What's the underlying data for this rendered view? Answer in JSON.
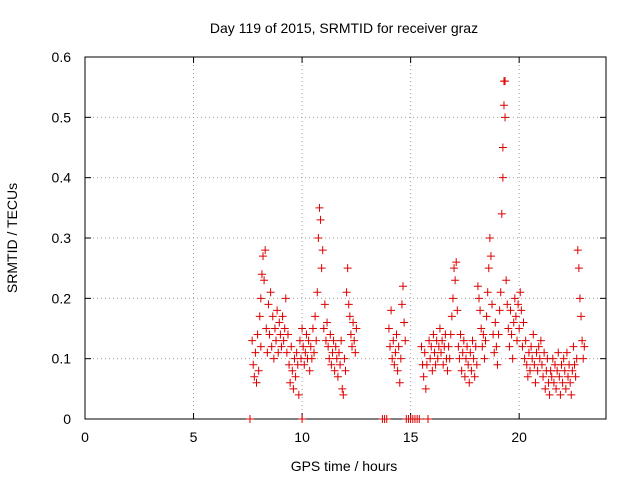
{
  "chart_data": {
    "type": "scatter",
    "title": "Day 119 of 2015, SRMTID for receiver graz",
    "xlabel": "GPS time / hours",
    "ylabel": "SRMTID / TECUs",
    "xlim": [
      0,
      24
    ],
    "ylim": [
      0,
      0.6
    ],
    "xticks": [
      0,
      5,
      10,
      15,
      20
    ],
    "yticks": [
      0,
      0.1,
      0.2,
      0.3,
      0.4,
      0.5,
      0.6
    ],
    "xtick_labels": [
      "0",
      "5",
      "10",
      "15",
      "20"
    ],
    "ytick_labels": [
      "0",
      "0.1",
      "0.2",
      "0.3",
      "0.4",
      "0.5",
      "0.6"
    ],
    "grid": true,
    "marker": "plus",
    "marker_color": "#dd0000",
    "series": [
      {
        "name": "graz",
        "points": [
          [
            7.6,
            0.0
          ],
          [
            7.7,
            0.13
          ],
          [
            7.75,
            0.09
          ],
          [
            7.8,
            0.07
          ],
          [
            7.85,
            0.11
          ],
          [
            7.9,
            0.06
          ],
          [
            7.95,
            0.14
          ],
          [
            8.0,
            0.08
          ],
          [
            8.05,
            0.17
          ],
          [
            8.1,
            0.12
          ],
          [
            8.1,
            0.2
          ],
          [
            8.15,
            0.24
          ],
          [
            8.2,
            0.27
          ],
          [
            8.25,
            0.23
          ],
          [
            8.3,
            0.28
          ],
          [
            8.35,
            0.15
          ],
          [
            8.4,
            0.11
          ],
          [
            8.45,
            0.19
          ],
          [
            8.5,
            0.14
          ],
          [
            8.55,
            0.21
          ],
          [
            8.6,
            0.12
          ],
          [
            8.65,
            0.17
          ],
          [
            8.7,
            0.1
          ],
          [
            8.75,
            0.15
          ],
          [
            8.8,
            0.13
          ],
          [
            8.85,
            0.18
          ],
          [
            8.9,
            0.11
          ],
          [
            8.95,
            0.16
          ],
          [
            9.0,
            0.14
          ],
          [
            9.05,
            0.12
          ],
          [
            9.1,
            0.17
          ],
          [
            9.15,
            0.13
          ],
          [
            9.2,
            0.15
          ],
          [
            9.25,
            0.2
          ],
          [
            9.3,
            0.11
          ],
          [
            9.35,
            0.14
          ],
          [
            9.4,
            0.09
          ],
          [
            9.45,
            0.06
          ],
          [
            9.5,
            0.12
          ],
          [
            9.55,
            0.08
          ],
          [
            9.6,
            0.05
          ],
          [
            9.65,
            0.1
          ],
          [
            9.7,
            0.07
          ],
          [
            9.75,
            0.11
          ],
          [
            9.8,
            0.09
          ],
          [
            9.85,
            0.04
          ],
          [
            9.9,
            0.13
          ],
          [
            9.95,
            0.1
          ],
          [
            10.0,
            0.0
          ],
          [
            10.0,
            0.15
          ],
          [
            10.05,
            0.12
          ],
          [
            10.1,
            0.09
          ],
          [
            10.15,
            0.11
          ],
          [
            10.2,
            0.14
          ],
          [
            10.25,
            0.1
          ],
          [
            10.3,
            0.13
          ],
          [
            10.35,
            0.08
          ],
          [
            10.4,
            0.12
          ],
          [
            10.45,
            0.1
          ],
          [
            10.5,
            0.15
          ],
          [
            10.55,
            0.11
          ],
          [
            10.6,
            0.17
          ],
          [
            10.65,
            0.13
          ],
          [
            10.7,
            0.21
          ],
          [
            10.75,
            0.3
          ],
          [
            10.8,
            0.35
          ],
          [
            10.85,
            0.33
          ],
          [
            10.9,
            0.25
          ],
          [
            10.95,
            0.28
          ],
          [
            11.0,
            0.15
          ],
          [
            11.05,
            0.19
          ],
          [
            11.1,
            0.13
          ],
          [
            11.15,
            0.16
          ],
          [
            11.2,
            0.12
          ],
          [
            11.25,
            0.1
          ],
          [
            11.3,
            0.14
          ],
          [
            11.35,
            0.09
          ],
          [
            11.4,
            0.11
          ],
          [
            11.45,
            0.13
          ],
          [
            11.5,
            0.08
          ],
          [
            11.55,
            0.12
          ],
          [
            11.6,
            0.1
          ],
          [
            11.65,
            0.07
          ],
          [
            11.7,
            0.11
          ],
          [
            11.75,
            0.09
          ],
          [
            11.8,
            0.13
          ],
          [
            11.85,
            0.05
          ],
          [
            11.9,
            0.04
          ],
          [
            11.95,
            0.1
          ],
          [
            12.0,
            0.08
          ],
          [
            12.05,
            0.21
          ],
          [
            12.1,
            0.25
          ],
          [
            12.15,
            0.19
          ],
          [
            12.2,
            0.17
          ],
          [
            12.25,
            0.14
          ],
          [
            12.3,
            0.12
          ],
          [
            12.35,
            0.16
          ],
          [
            12.4,
            0.13
          ],
          [
            12.45,
            0.11
          ],
          [
            12.5,
            0.15
          ],
          [
            13.7,
            0.0
          ],
          [
            13.8,
            0.0
          ],
          [
            13.9,
            0.0
          ],
          [
            14.0,
            0.15
          ],
          [
            14.05,
            0.12
          ],
          [
            14.1,
            0.18
          ],
          [
            14.15,
            0.1
          ],
          [
            14.2,
            0.13
          ],
          [
            14.25,
            0.09
          ],
          [
            14.3,
            0.11
          ],
          [
            14.35,
            0.14
          ],
          [
            14.4,
            0.08
          ],
          [
            14.45,
            0.12
          ],
          [
            14.5,
            0.06
          ],
          [
            14.55,
            0.1
          ],
          [
            14.6,
            0.19
          ],
          [
            14.65,
            0.22
          ],
          [
            14.7,
            0.16
          ],
          [
            14.75,
            0.13
          ],
          [
            14.8,
            0.0
          ],
          [
            14.9,
            0.0
          ],
          [
            15.0,
            0.0
          ],
          [
            15.1,
            0.0
          ],
          [
            15.2,
            0.0
          ],
          [
            15.3,
            0.0
          ],
          [
            15.4,
            0.0
          ],
          [
            15.5,
            0.12
          ],
          [
            15.55,
            0.09
          ],
          [
            15.6,
            0.07
          ],
          [
            15.65,
            0.11
          ],
          [
            15.7,
            0.05
          ],
          [
            15.75,
            0.09
          ],
          [
            15.8,
            0.0
          ],
          [
            15.85,
            0.13
          ],
          [
            15.9,
            0.1
          ],
          [
            15.95,
            0.12
          ],
          [
            16.0,
            0.08
          ],
          [
            16.05,
            0.14
          ],
          [
            16.1,
            0.11
          ],
          [
            16.15,
            0.09
          ],
          [
            16.2,
            0.13
          ],
          [
            16.25,
            0.1
          ],
          [
            16.3,
            0.12
          ],
          [
            16.35,
            0.15
          ],
          [
            16.4,
            0.11
          ],
          [
            16.45,
            0.13
          ],
          [
            16.5,
            0.09
          ],
          [
            16.55,
            0.12
          ],
          [
            16.6,
            0.14
          ],
          [
            16.65,
            0.1
          ],
          [
            16.7,
            0.08
          ],
          [
            16.75,
            0.12
          ],
          [
            16.8,
            0.1
          ],
          [
            16.85,
            0.14
          ],
          [
            16.9,
            0.17
          ],
          [
            16.95,
            0.2
          ],
          [
            17.0,
            0.25
          ],
          [
            17.05,
            0.23
          ],
          [
            17.1,
            0.26
          ],
          [
            17.15,
            0.18
          ],
          [
            17.2,
            0.12
          ],
          [
            17.25,
            0.1
          ],
          [
            17.3,
            0.14
          ],
          [
            17.35,
            0.08
          ],
          [
            17.4,
            0.11
          ],
          [
            17.45,
            0.13
          ],
          [
            17.5,
            0.07
          ],
          [
            17.55,
            0.1
          ],
          [
            17.6,
            0.12
          ],
          [
            17.65,
            0.09
          ],
          [
            17.7,
            0.06
          ],
          [
            17.75,
            0.11
          ],
          [
            17.8,
            0.08
          ],
          [
            17.85,
            0.13
          ],
          [
            17.9,
            0.1
          ],
          [
            17.95,
            0.07
          ],
          [
            18.0,
            0.12
          ],
          [
            18.05,
            0.09
          ],
          [
            18.1,
            0.22
          ],
          [
            18.15,
            0.2
          ],
          [
            18.2,
            0.18
          ],
          [
            18.25,
            0.15
          ],
          [
            18.3,
            0.12
          ],
          [
            18.35,
            0.14
          ],
          [
            18.4,
            0.1
          ],
          [
            18.45,
            0.13
          ],
          [
            18.5,
            0.17
          ],
          [
            18.55,
            0.21
          ],
          [
            18.6,
            0.25
          ],
          [
            18.65,
            0.3
          ],
          [
            18.7,
            0.27
          ],
          [
            18.75,
            0.19
          ],
          [
            18.8,
            0.14
          ],
          [
            18.85,
            0.11
          ],
          [
            18.9,
            0.16
          ],
          [
            18.95,
            0.12
          ],
          [
            19.0,
            0.09
          ],
          [
            19.05,
            0.14
          ],
          [
            19.1,
            0.18
          ],
          [
            19.15,
            0.21
          ],
          [
            19.2,
            0.34
          ],
          [
            19.25,
            0.4
          ],
          [
            19.25,
            0.45
          ],
          [
            19.3,
            0.52
          ],
          [
            19.3,
            0.56
          ],
          [
            19.35,
            0.56
          ],
          [
            19.35,
            0.5
          ],
          [
            19.4,
            0.23
          ],
          [
            19.45,
            0.19
          ],
          [
            19.5,
            0.15
          ],
          [
            19.55,
            0.12
          ],
          [
            19.6,
            0.18
          ],
          [
            19.65,
            0.14
          ],
          [
            19.7,
            0.1
          ],
          [
            19.75,
            0.16
          ],
          [
            19.8,
            0.2
          ],
          [
            19.85,
            0.17
          ],
          [
            19.9,
            0.13
          ],
          [
            19.95,
            0.19
          ],
          [
            20.0,
            0.15
          ],
          [
            20.05,
            0.21
          ],
          [
            20.1,
            0.18
          ],
          [
            20.15,
            0.12
          ],
          [
            20.2,
            0.16
          ],
          [
            20.25,
            0.1
          ],
          [
            20.3,
            0.13
          ],
          [
            20.35,
            0.09
          ],
          [
            20.4,
            0.07
          ],
          [
            20.45,
            0.11
          ],
          [
            20.5,
            0.08
          ],
          [
            20.55,
            0.12
          ],
          [
            20.6,
            0.1
          ],
          [
            20.65,
            0.14
          ],
          [
            20.7,
            0.09
          ],
          [
            20.75,
            0.06
          ],
          [
            20.8,
            0.11
          ],
          [
            20.85,
            0.08
          ],
          [
            20.9,
            0.12
          ],
          [
            20.95,
            0.1
          ],
          [
            21.0,
            0.13
          ],
          [
            21.05,
            0.09
          ],
          [
            21.1,
            0.07
          ],
          [
            21.15,
            0.11
          ],
          [
            21.2,
            0.05
          ],
          [
            21.25,
            0.08
          ],
          [
            21.3,
            0.1
          ],
          [
            21.35,
            0.06
          ],
          [
            21.4,
            0.04
          ],
          [
            21.45,
            0.08
          ],
          [
            21.5,
            0.07
          ],
          [
            21.55,
            0.1
          ],
          [
            21.6,
            0.06
          ],
          [
            21.65,
            0.09
          ],
          [
            21.7,
            0.05
          ],
          [
            21.75,
            0.08
          ],
          [
            21.8,
            0.11
          ],
          [
            21.85,
            0.07
          ],
          [
            21.9,
            0.04
          ],
          [
            21.95,
            0.09
          ],
          [
            22.0,
            0.06
          ],
          [
            22.05,
            0.1
          ],
          [
            22.1,
            0.08
          ],
          [
            22.15,
            0.05
          ],
          [
            22.2,
            0.11
          ],
          [
            22.25,
            0.07
          ],
          [
            22.3,
            0.09
          ],
          [
            22.35,
            0.06
          ],
          [
            22.4,
            0.04
          ],
          [
            22.45,
            0.08
          ],
          [
            22.5,
            0.12
          ],
          [
            22.55,
            0.09
          ],
          [
            22.6,
            0.07
          ],
          [
            22.65,
            0.1
          ],
          [
            22.7,
            0.28
          ],
          [
            22.75,
            0.25
          ],
          [
            22.8,
            0.2
          ],
          [
            22.85,
            0.17
          ],
          [
            22.9,
            0.13
          ],
          [
            22.95,
            0.1
          ],
          [
            23.0,
            0.12
          ]
        ]
      }
    ]
  }
}
